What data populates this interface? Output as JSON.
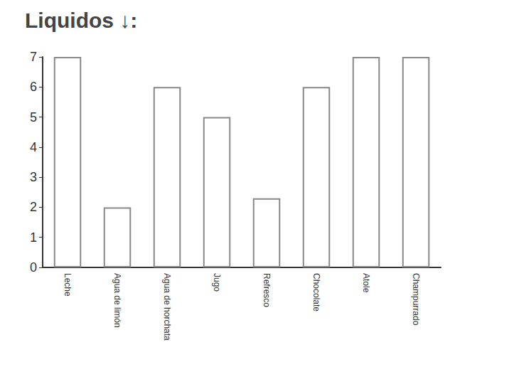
{
  "chart_data": {
    "type": "bar",
    "title": "Liquidos ↓:",
    "categories": [
      "Leche",
      "Agua de limón",
      "Agua de horchata",
      "Jugo",
      "Refresco",
      "Chocolate",
      "Atole",
      "Champurrado"
    ],
    "values": [
      7,
      2,
      6,
      5,
      2.3,
      6,
      7,
      7
    ],
    "color": "#ffffff",
    "ylim": [
      0,
      7
    ],
    "yticks": [
      0,
      1,
      2,
      3,
      4,
      5,
      6,
      7
    ],
    "grid": false
  }
}
